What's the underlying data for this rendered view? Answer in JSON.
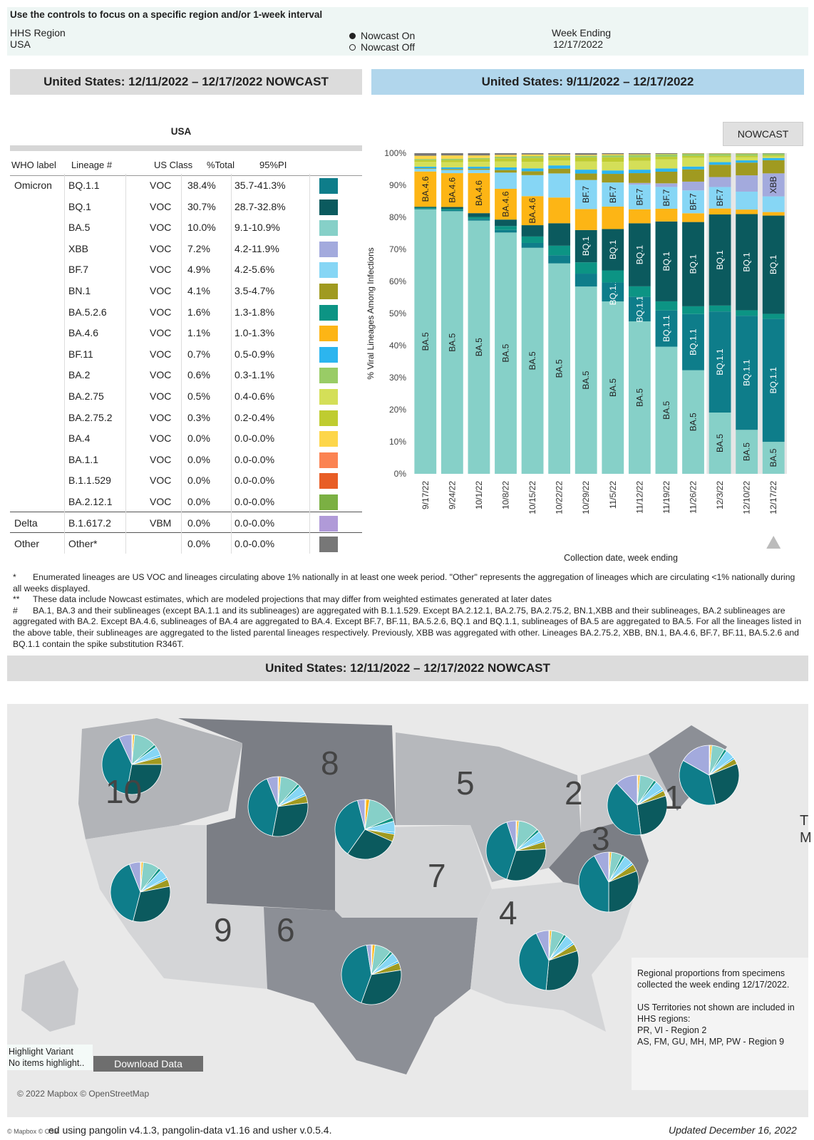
{
  "controls": {
    "title": "Use the controls to focus on a specific region and/or 1-week interval",
    "region_label": "HHS Region",
    "region_value": "USA",
    "nowcast_on": "Nowcast On",
    "nowcast_off": "Nowcast Off",
    "week_label": "Week Ending",
    "week_value": "12/17/2022"
  },
  "banners": {
    "left": "United States: 12/11/2022 – 12/17/2022 NOWCAST",
    "right": "United States: 9/11/2022 – 12/17/2022",
    "map": "United States: 12/11/2022 – 12/17/2022 NOWCAST"
  },
  "table": {
    "title": "USA",
    "headers": [
      "WHO label",
      "Lineage #",
      "US Class",
      "%Total",
      "95%PI"
    ],
    "rows": [
      {
        "who": "Omicron",
        "lineage": "BQ.1.1",
        "cls": "VOC",
        "pct": "38.4%",
        "pi": "35.7-41.3%",
        "color": "#0e7d8a"
      },
      {
        "who": "",
        "lineage": "BQ.1",
        "cls": "VOC",
        "pct": "30.7%",
        "pi": "28.7-32.8%",
        "color": "#0b5a5e"
      },
      {
        "who": "",
        "lineage": "BA.5",
        "cls": "VOC",
        "pct": "10.0%",
        "pi": "9.1-10.9%",
        "color": "#86d0c8"
      },
      {
        "who": "",
        "lineage": "XBB",
        "cls": "VOC",
        "pct": "7.2%",
        "pi": "4.2-11.9%",
        "color": "#a3aadd"
      },
      {
        "who": "",
        "lineage": "BF.7",
        "cls": "VOC",
        "pct": "4.9%",
        "pi": "4.2-5.6%",
        "color": "#86d6f5"
      },
      {
        "who": "",
        "lineage": "BN.1",
        "cls": "VOC",
        "pct": "4.1%",
        "pi": "3.5-4.7%",
        "color": "#a09a20"
      },
      {
        "who": "",
        "lineage": "BA.5.2.6",
        "cls": "VOC",
        "pct": "1.6%",
        "pi": "1.3-1.8%",
        "color": "#0c9484"
      },
      {
        "who": "",
        "lineage": "BA.4.6",
        "cls": "VOC",
        "pct": "1.1%",
        "pi": "1.0-1.3%",
        "color": "#fdb515"
      },
      {
        "who": "",
        "lineage": "BF.11",
        "cls": "VOC",
        "pct": "0.7%",
        "pi": "0.5-0.9%",
        "color": "#2cb5ef"
      },
      {
        "who": "",
        "lineage": "BA.2",
        "cls": "VOC",
        "pct": "0.6%",
        "pi": "0.3-1.1%",
        "color": "#99cc66"
      },
      {
        "who": "",
        "lineage": "BA.2.75",
        "cls": "VOC",
        "pct": "0.5%",
        "pi": "0.4-0.6%",
        "color": "#d4df58"
      },
      {
        "who": "",
        "lineage": "BA.2.75.2",
        "cls": "VOC",
        "pct": "0.3%",
        "pi": "0.2-0.4%",
        "color": "#bfcc30"
      },
      {
        "who": "",
        "lineage": "BA.4",
        "cls": "VOC",
        "pct": "0.0%",
        "pi": "0.0-0.0%",
        "color": "#fdd64a"
      },
      {
        "who": "",
        "lineage": "BA.1.1",
        "cls": "VOC",
        "pct": "0.0%",
        "pi": "0.0-0.0%",
        "color": "#fb8352"
      },
      {
        "who": "",
        "lineage": "B.1.1.529",
        "cls": "VOC",
        "pct": "0.0%",
        "pi": "0.0-0.0%",
        "color": "#e85d25"
      },
      {
        "who": "",
        "lineage": "BA.2.12.1",
        "cls": "VOC",
        "pct": "0.0%",
        "pi": "0.0-0.0%",
        "color": "#7bb043"
      },
      {
        "who": "Delta",
        "lineage": "B.1.617.2",
        "cls": "VBM",
        "pct": "0.0%",
        "pi": "0.0-0.0%",
        "color": "#b09ad8"
      },
      {
        "who": "Other",
        "lineage": "Other*",
        "cls": "",
        "pct": "0.0%",
        "pi": "0.0-0.0%",
        "color": "#777777"
      }
    ]
  },
  "chart_data": {
    "type": "bar",
    "stacked": true,
    "nowcast_label": "NOWCAST",
    "xlabel": "Collection date, week ending",
    "ylabel": "% Viral Lineages Among Infections",
    "ylim": [
      0,
      100
    ],
    "yticks": [
      "0%",
      "10%",
      "20%",
      "30%",
      "40%",
      "50%",
      "60%",
      "70%",
      "80%",
      "90%",
      "100%"
    ],
    "categories": [
      "9/17/22",
      "9/24/22",
      "10/1/22",
      "10/8/22",
      "10/15/22",
      "10/22/22",
      "10/29/22",
      "11/5/22",
      "11/12/22",
      "11/19/22",
      "11/26/22",
      "12/3/22",
      "12/10/22",
      "12/17/22"
    ],
    "nowcast_count": 3,
    "series": [
      {
        "name": "BA.5",
        "color": "#86d0c8",
        "values": [
          82.5,
          81.5,
          79.0,
          74.5,
          70.0,
          65.5,
          58.0,
          50.0,
          43.5,
          35.0,
          29.5,
          18.5,
          13.5,
          10.0
        ],
        "labels": [
          1,
          1,
          1,
          1,
          1,
          1,
          1,
          1,
          1,
          1,
          1,
          1,
          1,
          1
        ]
      },
      {
        "name": "BQ.1.1",
        "color": "#0e7d8a",
        "values": [
          0.2,
          0.3,
          0.5,
          0.8,
          1.5,
          2.5,
          4.0,
          5.5,
          7.0,
          10.0,
          16.0,
          30.5,
          35.0,
          38.4
        ],
        "labels": [
          0,
          0,
          0,
          0,
          0,
          0,
          0,
          1,
          1,
          1,
          1,
          1,
          1,
          1
        ]
      },
      {
        "name": "BA.5.2.6",
        "color": "#0c9484",
        "values": [
          0.3,
          0.4,
          0.6,
          1.2,
          2.0,
          3.0,
          3.5,
          3.5,
          3.0,
          2.5,
          2.2,
          1.8,
          1.7,
          1.6
        ],
        "labels": [
          0,
          0,
          0,
          0,
          0,
          0,
          0,
          0,
          0,
          0,
          0,
          0,
          0,
          0
        ]
      },
      {
        "name": "BQ.1",
        "color": "#0b5a5e",
        "values": [
          0.3,
          0.6,
          1.2,
          2.0,
          3.5,
          7.0,
          10.0,
          12.0,
          18.0,
          22.0,
          24.0,
          27.5,
          29.5,
          30.7
        ],
        "labels": [
          0,
          0,
          0,
          0,
          0,
          0,
          1,
          1,
          1,
          1,
          1,
          1,
          1,
          1
        ]
      },
      {
        "name": "BA.4.6",
        "color": "#fdb515",
        "values": [
          11.0,
          10.5,
          12.5,
          9.5,
          9.0,
          8.0,
          6.5,
          6.5,
          4.0,
          3.5,
          2.5,
          1.8,
          1.4,
          1.1
        ],
        "labels": [
          1,
          1,
          1,
          1,
          1,
          0,
          0,
          0,
          0,
          0,
          0,
          0,
          0,
          0
        ]
      },
      {
        "name": "BF.7",
        "color": "#86d6f5",
        "values": [
          0.8,
          1.0,
          1.0,
          5.0,
          6.5,
          7.5,
          9.0,
          7.0,
          7.0,
          6.0,
          6.5,
          6.5,
          5.5,
          4.9
        ],
        "labels": [
          0,
          0,
          0,
          0,
          0,
          0,
          1,
          1,
          1,
          1,
          1,
          1,
          0,
          0
        ]
      },
      {
        "name": "XBB",
        "color": "#a3aadd",
        "values": [
          0,
          0,
          0,
          0,
          0,
          0,
          0,
          0,
          0.5,
          1.0,
          2.5,
          3.0,
          5.0,
          7.2
        ],
        "labels": [
          0,
          0,
          0,
          0,
          0,
          0,
          0,
          0,
          0,
          0,
          0,
          0,
          0,
          1
        ]
      },
      {
        "name": "BN.1",
        "color": "#a09a20",
        "values": [
          0.2,
          0.3,
          0.4,
          0.8,
          1.2,
          1.5,
          2.0,
          2.5,
          2.8,
          3.2,
          3.5,
          3.7,
          3.9,
          4.1
        ],
        "labels": [
          0,
          0,
          0,
          0,
          0,
          0,
          0,
          0,
          0,
          0,
          0,
          0,
          0,
          0
        ]
      },
      {
        "name": "BF.11",
        "color": "#2cb5ef",
        "values": [
          0.5,
          0.5,
          0.6,
          0.8,
          0.9,
          1.0,
          1.2,
          1.0,
          1.0,
          0.9,
          0.8,
          0.8,
          0.7,
          0.7
        ],
        "labels": [
          0,
          0,
          0,
          0,
          0,
          0,
          0,
          0,
          0,
          0,
          0,
          0,
          0,
          0
        ]
      },
      {
        "name": "BA.2.75",
        "color": "#d4df58",
        "values": [
          1.5,
          1.6,
          1.5,
          1.8,
          2.0,
          1.5,
          2.5,
          2.5,
          2.5,
          2.5,
          2.5,
          1.5,
          1.0,
          0.5
        ],
        "labels": [
          0,
          0,
          0,
          0,
          0,
          0,
          0,
          0,
          0,
          0,
          0,
          0,
          0,
          0
        ]
      },
      {
        "name": "BA.2.75.2",
        "color": "#bfcc30",
        "values": [
          0.5,
          0.6,
          0.8,
          1.0,
          1.2,
          1.0,
          1.3,
          1.3,
          1.0,
          0.7,
          0.5,
          0.4,
          0.4,
          0.3
        ],
        "labels": [
          0,
          0,
          0,
          0,
          0,
          0,
          0,
          0,
          0,
          0,
          0,
          0,
          0,
          0
        ]
      },
      {
        "name": "BA.2",
        "color": "#99cc66",
        "values": [
          0.4,
          0.5,
          0.4,
          0.5,
          0.6,
          0.5,
          0.5,
          0.6,
          0.7,
          0.7,
          0.6,
          0.6,
          0.6,
          0.6
        ],
        "labels": [
          0,
          0,
          0,
          0,
          0,
          0,
          0,
          0,
          0,
          0,
          0,
          0,
          0,
          0
        ]
      },
      {
        "name": "BA.4",
        "color": "#fdd64a",
        "values": [
          1.0,
          1.0,
          0.8,
          0.6,
          0.5,
          0.4,
          0.3,
          0.3,
          0.2,
          0.1,
          0.1,
          0.1,
          0.1,
          0.0
        ],
        "labels": [
          0,
          0,
          0,
          0,
          0,
          0,
          0,
          0,
          0,
          0,
          0,
          0,
          0,
          0
        ]
      },
      {
        "name": "Other",
        "color": "#777777",
        "values": [
          0.8,
          0.7,
          0.7,
          0.5,
          0.4,
          0.4,
          0.5,
          0.3,
          0.3,
          0.2,
          0.1,
          0.1,
          0.1,
          0.1
        ],
        "labels": [
          0,
          0,
          0,
          0,
          0,
          0,
          0,
          0,
          0,
          0,
          0,
          0,
          0,
          0
        ]
      }
    ]
  },
  "notes": [
    {
      "sym": "*",
      "text": "Enumerated lineages are US VOC and lineages circulating above 1% nationally in at least one week period. \"Other\" represents the aggregation of lineages which are circulating <1% nationally during all weeks displayed."
    },
    {
      "sym": "**",
      "text": "These data include Nowcast estimates, which are modeled projections that may differ from weighted estimates generated at later dates"
    },
    {
      "sym": "#",
      "text": "BA.1, BA.3 and their sublineages (except BA.1.1 and its sublineages) are aggregated with B.1.1.529. Except BA.2.12.1, BA.2.75, BA.2.75.2, BN.1,XBB and their sublineages, BA.2 sublineages are aggregated with BA.2. Except BA.4.6, sublineages of BA.4 are aggregated to BA.4. Except BF.7, BF.11, BA.5.2.6, BQ.1 and BQ.1.1, sublineages of BA.5 are aggregated to BA.5. For all the lineages listed in the above table, their sublineages are aggregated to the listed parental lineages respectively. Previously, XBB was aggregated with other. Lineages BA.2.75.2, XBB, BN.1, BA.4.6, BF.7, BF.11, BA.5.2.6 and BQ.1.1 contain the spike substitution R346T."
    }
  ],
  "map": {
    "region_numbers": [
      "10",
      "8",
      "5",
      "2",
      "1",
      "3",
      "7",
      "9",
      "6",
      "4"
    ],
    "legend_line1": "Regional proportions from specimens collected the week ending 12/17/2022.",
    "legend_line2": "US Territories not shown are included in HHS regions:",
    "legend_line3": "PR, VI - Region 2",
    "legend_line4": "AS, FM, GU, MH, MP, PW - Region 9",
    "highlight_label": "Highlight Variant",
    "highlight_value": "No items highlight..",
    "download_label": "Download Data",
    "credit": "© 2022 Mapbox © OpenStreetMap",
    "credit_small": "© Mapbox © OSM",
    "side_letters": "T M",
    "pie_colors": [
      "#fdd64a",
      "#fdb515",
      "#86d0c8",
      "#0c9484",
      "#86d6f5",
      "#2cb5ef",
      "#a09a20",
      "#0b5a5e",
      "#0e7d8a",
      "#a3aadd"
    ],
    "pies": [
      {
        "region": "10",
        "values": [
          0.5,
          1.0,
          12,
          1.5,
          5,
          1,
          4,
          28,
          40,
          7
        ]
      },
      {
        "region": "8",
        "values": [
          0.5,
          1.0,
          10,
          1.5,
          5,
          1,
          4,
          30,
          41,
          6
        ]
      },
      {
        "region": "7",
        "values": [
          0.5,
          2.0,
          16,
          2.0,
          6,
          1,
          4,
          28,
          36,
          4
        ]
      },
      {
        "region": "9",
        "values": [
          0.5,
          1.0,
          9,
          1.5,
          5,
          1,
          4,
          32,
          40,
          6
        ]
      },
      {
        "region": "6",
        "values": [
          0.5,
          1.5,
          9,
          1.5,
          5,
          1,
          4,
          33,
          42,
          2.5
        ]
      },
      {
        "region": "5",
        "values": [
          0.5,
          1.0,
          11,
          1.5,
          5,
          1,
          4,
          31,
          40,
          5
        ]
      },
      {
        "region": "4",
        "values": [
          0.5,
          1.0,
          7,
          1.5,
          5,
          1,
          4,
          32,
          42,
          7
        ]
      },
      {
        "region": "3",
        "values": [
          0.5,
          1.0,
          6,
          1.5,
          5,
          1,
          4,
          31,
          42,
          8
        ]
      },
      {
        "region": "2",
        "values": [
          0.5,
          1.0,
          8,
          1.5,
          5,
          1,
          3,
          28,
          40,
          12
        ]
      },
      {
        "region": "1",
        "values": [
          0.5,
          1.0,
          7,
          1.5,
          5,
          1,
          3,
          28,
          37,
          17
        ]
      }
    ]
  },
  "footer": {
    "left": "ed using pangolin v4.1.3, pangolin-data v1.16 and usher v.0.5.4.",
    "right": "Updated December 16, 2022"
  }
}
